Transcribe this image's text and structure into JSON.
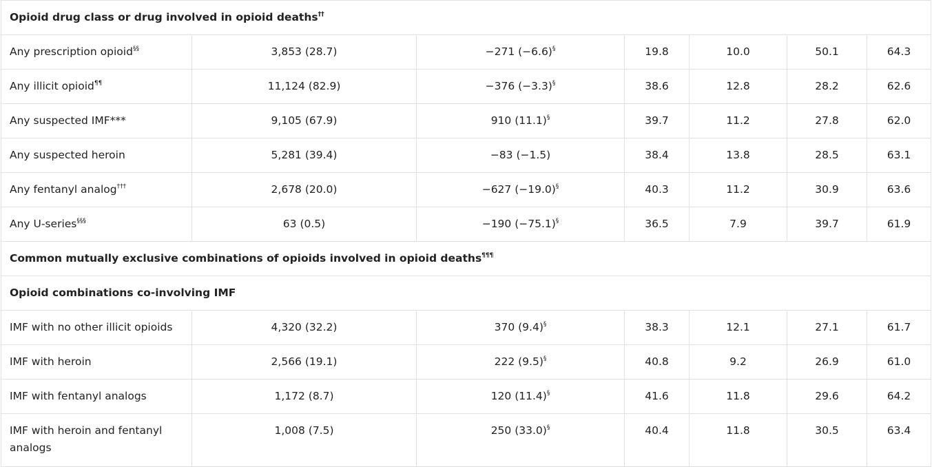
{
  "sections": [
    {
      "title": "Opioid drug class or drug involved in opioid deaths",
      "title_sup": "††",
      "rows": [
        {
          "label": "Any prescription opioid",
          "sup": "§§",
          "count": "3,853 (28.7)",
          "change": "−271 (−6.6)",
          "change_sup": "§",
          "c1": "19.8",
          "c2": "10.0",
          "c3": "50.1",
          "c4": "64.3"
        },
        {
          "label": "Any illicit opioid",
          "sup": "¶¶",
          "count": "11,124 (82.9)",
          "change": "−376 (−3.3)",
          "change_sup": "§",
          "c1": "38.6",
          "c2": "12.8",
          "c3": "28.2",
          "c4": "62.6"
        },
        {
          "label": "Any suspected IMF***",
          "sup": "",
          "count": "9,105 (67.9)",
          "change": "910 (11.1)",
          "change_sup": "§",
          "c1": "39.7",
          "c2": "11.2",
          "c3": "27.8",
          "c4": "62.0"
        },
        {
          "label": "Any suspected heroin",
          "sup": "",
          "count": "5,281 (39.4)",
          "change": "−83 (−1.5)",
          "change_sup": "",
          "c1": "38.4",
          "c2": "13.8",
          "c3": "28.5",
          "c4": "63.1"
        },
        {
          "label": "Any fentanyl analog",
          "sup": "†††",
          "count": "2,678 (20.0)",
          "change": "−627 (−19.0)",
          "change_sup": "§",
          "c1": "40.3",
          "c2": "11.2",
          "c3": "30.9",
          "c4": "63.6"
        },
        {
          "label": "Any U-series",
          "sup": "§§§",
          "count": "63 (0.5)",
          "change": "−190 (−75.1)",
          "change_sup": "§",
          "c1": "36.5",
          "c2": "7.9",
          "c3": "39.7",
          "c4": "61.9"
        }
      ]
    }
  ],
  "section2": {
    "title": "Common mutually exclusive combinations of opioids involved in opioid deaths",
    "title_sup": "¶¶¶"
  },
  "section3": {
    "title": "Opioid combinations co-involving IMF",
    "rows": [
      {
        "label": "IMF with no other illicit opioids",
        "count": "4,320 (32.2)",
        "change": "370 (9.4)",
        "change_sup": "§",
        "c1": "38.3",
        "c2": "12.1",
        "c3": "27.1",
        "c4": "61.7"
      },
      {
        "label": "IMF with heroin",
        "count": "2,566 (19.1)",
        "change": "222 (9.5)",
        "change_sup": "§",
        "c1": "40.8",
        "c2": "9.2",
        "c3": "26.9",
        "c4": "61.0"
      },
      {
        "label": "IMF with fentanyl analogs",
        "count": "1,172 (8.7)",
        "change": "120 (11.4)",
        "change_sup": "§",
        "c1": "41.6",
        "c2": "11.8",
        "c3": "29.6",
        "c4": "64.2"
      },
      {
        "label": "IMF with heroin and fentanyl analogs",
        "count": "1,008 (7.5)",
        "change": "250 (33.0)",
        "change_sup": "§",
        "c1": "40.4",
        "c2": "11.8",
        "c3": "30.5",
        "c4": "63.4"
      }
    ]
  }
}
